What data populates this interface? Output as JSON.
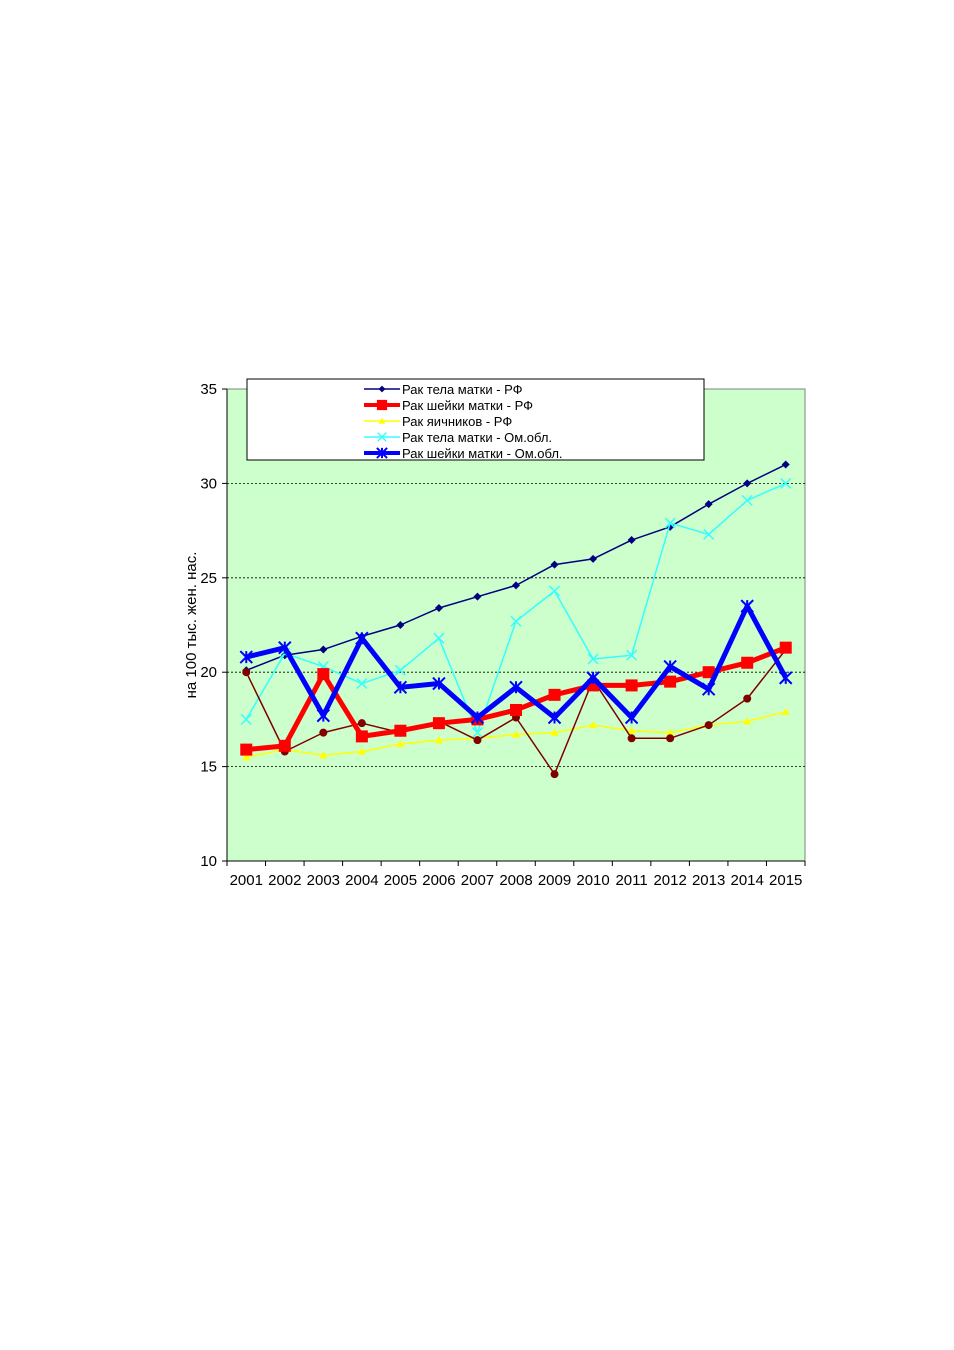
{
  "chart_data": {
    "type": "line",
    "title": "",
    "xlabel": "",
    "ylabel": "на 100 тыс. жен. нас.",
    "ylim": [
      10,
      35
    ],
    "yticks": [
      10,
      15,
      20,
      25,
      30,
      35
    ],
    "grid": "horizontal dashed",
    "background_color": "#ccffcc",
    "legend_placement": "top-left inside",
    "categories": [
      "2001",
      "2002",
      "2003",
      "2004",
      "2005",
      "2006",
      "2007",
      "2008",
      "2009",
      "2010",
      "2011",
      "2012",
      "2013",
      "2014",
      "2015"
    ],
    "series": [
      {
        "name": "Рак тела матки - РФ",
        "color": "#000080",
        "marker": "diamond",
        "width": 1.5,
        "in_legend": true,
        "values": [
          20.1,
          20.9,
          21.2,
          21.9,
          22.5,
          23.4,
          24.0,
          24.6,
          25.7,
          26.0,
          27.0,
          27.7,
          28.9,
          30.0,
          31.0
        ]
      },
      {
        "name": "Рак шейки матки - РФ",
        "color": "#ff0000",
        "marker": "square",
        "width": 5,
        "in_legend": true,
        "values": [
          15.9,
          16.1,
          19.9,
          16.6,
          16.9,
          17.3,
          17.5,
          18.0,
          18.8,
          19.3,
          19.3,
          19.5,
          20.0,
          20.5,
          21.3
        ]
      },
      {
        "name": "Рак яичников - РФ",
        "color": "#ffff00",
        "marker": "triangle",
        "width": 1.5,
        "in_legend": true,
        "values": [
          15.5,
          15.9,
          15.6,
          15.8,
          16.2,
          16.4,
          16.5,
          16.7,
          16.8,
          17.2,
          16.9,
          16.8,
          17.2,
          17.4,
          17.9
        ]
      },
      {
        "name": "Рак тела матки - Ом.обл.",
        "color": "#33ffff",
        "marker": "x",
        "width": 1.5,
        "in_legend": true,
        "values": [
          17.5,
          21.0,
          20.3,
          19.4,
          20.1,
          21.8,
          16.8,
          22.7,
          24.3,
          20.7,
          20.9,
          27.9,
          27.3,
          29.1,
          30.0
        ]
      },
      {
        "name": "Рак шейки матки - Ом.обл.",
        "color": "#0000ff",
        "marker": "star",
        "width": 5,
        "in_legend": true,
        "values": [
          20.8,
          21.3,
          17.7,
          21.8,
          19.2,
          19.4,
          17.6,
          19.2,
          17.6,
          19.7,
          17.6,
          20.3,
          19.1,
          23.5,
          19.7
        ]
      },
      {
        "name": "",
        "color": "#800000",
        "marker": "circle",
        "width": 1.5,
        "in_legend": false,
        "values": [
          20.0,
          15.8,
          16.8,
          17.3,
          16.8,
          17.4,
          16.4,
          17.6,
          14.6,
          19.6,
          16.5,
          16.5,
          17.2,
          18.6,
          21.2
        ]
      }
    ]
  }
}
